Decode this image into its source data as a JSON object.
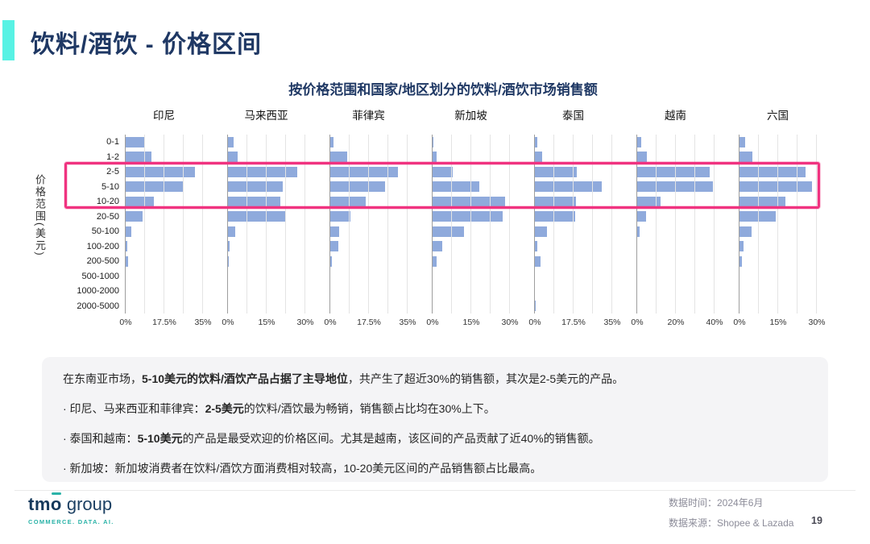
{
  "slide": {
    "title": "饮料/酒饮 - 价格区间"
  },
  "chart": {
    "title": "按价格范围和国家/地区划分的饮料/酒饮市场销售额",
    "y_axis_title": "价格范围(美元)"
  },
  "chart_data": {
    "type": "bar",
    "orientation": "horizontal",
    "grid": true,
    "categories": [
      "0-1",
      "1-2",
      "2-5",
      "5-10",
      "10-20",
      "20-50",
      "50-100",
      "100-200",
      "200-500",
      "500-1000",
      "1000-2000",
      "2000-5000"
    ],
    "value_unit": "% of sales",
    "panels": [
      {
        "name": "印尼",
        "xlim": [
          0,
          35
        ],
        "ticks": [
          "0%",
          "17.5%",
          "35%"
        ],
        "values": [
          8.8,
          11.7,
          31.5,
          26.3,
          12.7,
          7.6,
          2.5,
          0.6,
          1.1,
          0,
          0,
          0
        ]
      },
      {
        "name": "马来西亚",
        "xlim": [
          0,
          30
        ],
        "ticks": [
          "0%",
          "15%",
          "30%"
        ],
        "values": [
          2.2,
          3.8,
          26.8,
          21.1,
          20.4,
          22.6,
          2.8,
          0.7,
          0.4,
          0,
          0,
          0
        ]
      },
      {
        "name": "菲律宾",
        "xlim": [
          0,
          35
        ],
        "ticks": [
          "0%",
          "17.5%",
          "35%"
        ],
        "values": [
          1.5,
          7.5,
          30.6,
          24.9,
          16.2,
          9.1,
          3.9,
          3.5,
          0.8,
          0,
          0,
          0
        ]
      },
      {
        "name": "新加坡",
        "xlim": [
          0,
          30
        ],
        "ticks": [
          "0%",
          "15%",
          "30%"
        ],
        "values": [
          0.4,
          1.5,
          7.7,
          18.1,
          28.2,
          27.1,
          12.2,
          3.6,
          1.5,
          0,
          0,
          0
        ]
      },
      {
        "name": "泰国",
        "xlim": [
          0,
          35
        ],
        "ticks": [
          "0%",
          "17.5%",
          "35%"
        ],
        "values": [
          0.9,
          3.3,
          18.8,
          30.1,
          18.6,
          18.2,
          5.5,
          1.2,
          2.4,
          0,
          0,
          0.5
        ]
      },
      {
        "name": "越南",
        "xlim": [
          0,
          40
        ],
        "ticks": [
          "0%",
          "20%",
          "40%"
        ],
        "values": [
          2.1,
          4.9,
          37.4,
          39.3,
          12.1,
          4.6,
          1.4,
          0,
          0,
          0,
          0,
          0
        ]
      },
      {
        "name": "六国",
        "xlim": [
          0,
          30
        ],
        "ticks": [
          "0%",
          "15%",
          "30%"
        ],
        "values": [
          2.3,
          5.0,
          25.5,
          28.1,
          17.7,
          14.2,
          4.6,
          1.5,
          1.0,
          0,
          0,
          0
        ]
      }
    ],
    "highlighted_categories": [
      "2-5",
      "5-10",
      "10-20"
    ],
    "bar_color": "#8FAADC",
    "highlight_color": "#F03380"
  },
  "insights": {
    "lines": [
      {
        "segments": [
          {
            "text": "在东南亚市场，",
            "bold": false
          },
          {
            "text": "5-10美元的饮料/酒饮产品占据了主导地位",
            "bold": true
          },
          {
            "text": "，共产生了超近30%的销售额，其次是2-5美元的产品。",
            "bold": false
          }
        ]
      },
      {
        "segments": [
          {
            "text": "· 印尼、马来西亚和菲律宾：",
            "bold": false
          },
          {
            "text": "2-5美元",
            "bold": true
          },
          {
            "text": "的饮料/酒饮最为畅销，销售额占比均在30%上下。",
            "bold": false
          }
        ]
      },
      {
        "segments": [
          {
            "text": "· 泰国和越南：",
            "bold": false
          },
          {
            "text": "5-10美元",
            "bold": true
          },
          {
            "text": "的产品是最受欢迎的价格区间。尤其是越南，该区间的产品贡献了近40%的销售额。",
            "bold": false
          }
        ]
      },
      {
        "segments": [
          {
            "text": "· 新加坡：新加坡消费者在饮料/酒饮方面消费相对较高，10-20美元区间的产品销售额占比最高。",
            "bold": false
          }
        ]
      }
    ]
  },
  "footer": {
    "logo_tm": "tm",
    "logo_o": "o",
    "logo_group": "group",
    "logo_tagline": "COMMERCE. DATA. AI.",
    "data_time": "数据时间：2024年6月",
    "data_source": "数据来源：Shopee & Lazada",
    "page_number": "19"
  }
}
